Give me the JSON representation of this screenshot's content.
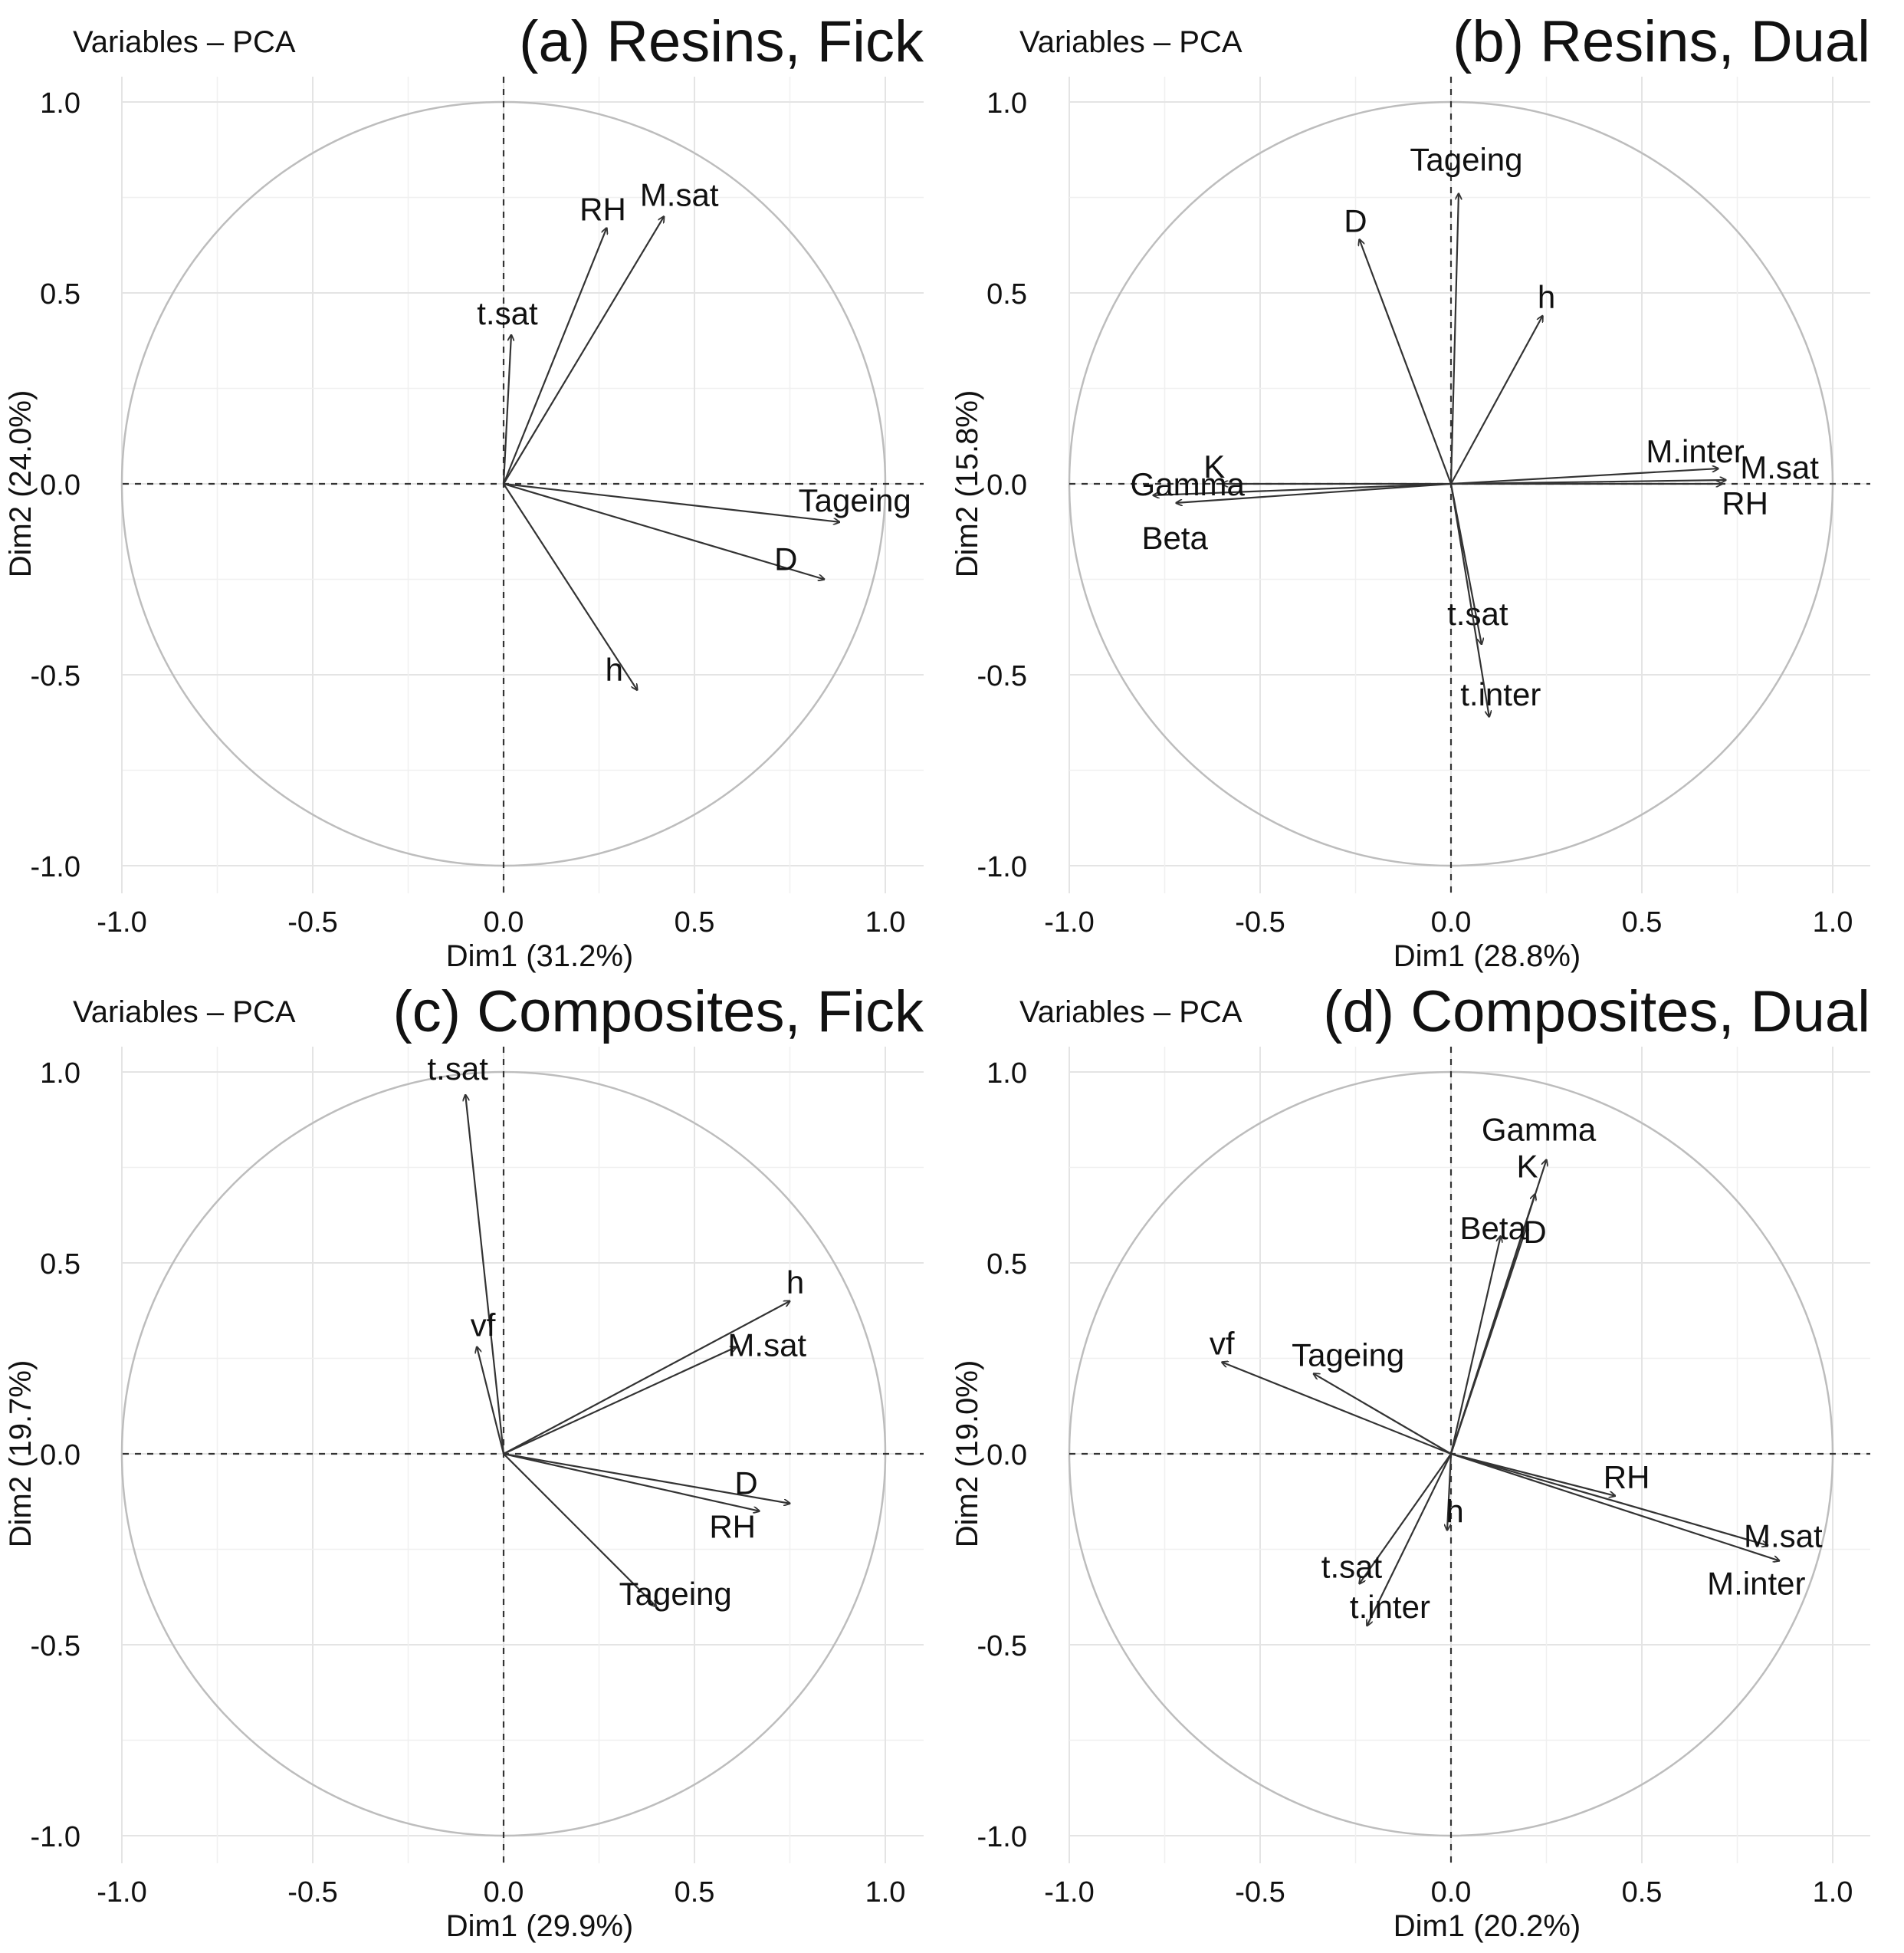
{
  "chart_data": [
    {
      "type": "scatter",
      "subtype": "pca-variable-correlation-circle",
      "corner_title": "Variables – PCA",
      "title": "(a) Resins, Fick",
      "xlabel": "Dim1 (31.2%)",
      "ylabel": "Dim2 (24.0%)",
      "xlim": [
        -1.0,
        1.0
      ],
      "ylim": [
        -1.0,
        1.0
      ],
      "ticks": [
        -1.0,
        -0.5,
        0.0,
        0.5,
        1.0
      ],
      "tick_labels": [
        "-1.0",
        "-0.5",
        "0.0",
        "0.5",
        "1.0"
      ],
      "grid": true,
      "variables": [
        {
          "name": "RH",
          "x": 0.27,
          "y": 0.67
        },
        {
          "name": "M.sat",
          "x": 0.42,
          "y": 0.7
        },
        {
          "name": "t.sat",
          "x": 0.02,
          "y": 0.39
        },
        {
          "name": "Tageing",
          "x": 0.88,
          "y": -0.1
        },
        {
          "name": "D",
          "x": 0.84,
          "y": -0.25
        },
        {
          "name": "h",
          "x": 0.35,
          "y": -0.54
        }
      ]
    },
    {
      "type": "scatter",
      "subtype": "pca-variable-correlation-circle",
      "corner_title": "Variables – PCA",
      "title": "(b) Resins, Dual",
      "xlabel": "Dim1 (28.8%)",
      "ylabel": "Dim2 (15.8%)",
      "xlim": [
        -1.0,
        1.0
      ],
      "ylim": [
        -1.0,
        1.0
      ],
      "ticks": [
        -1.0,
        -0.5,
        0.0,
        0.5,
        1.0
      ],
      "tick_labels": [
        "-1.0",
        "-0.5",
        "0.0",
        "0.5",
        "1.0"
      ],
      "grid": true,
      "variables": [
        {
          "name": "Tageing",
          "x": 0.02,
          "y": 0.76
        },
        {
          "name": "D",
          "x": -0.24,
          "y": 0.64
        },
        {
          "name": "h",
          "x": 0.24,
          "y": 0.44
        },
        {
          "name": "M.inter",
          "x": 0.7,
          "y": 0.04
        },
        {
          "name": "M.sat",
          "x": 0.72,
          "y": 0.01
        },
        {
          "name": "RH",
          "x": 0.71,
          "y": 0.0
        },
        {
          "name": "K",
          "x": -0.6,
          "y": 0.0
        },
        {
          "name": "Gamma",
          "x": -0.78,
          "y": -0.03
        },
        {
          "name": "Beta",
          "x": -0.72,
          "y": -0.05
        },
        {
          "name": "t.sat",
          "x": 0.08,
          "y": -0.42
        },
        {
          "name": "t.inter",
          "x": 0.1,
          "y": -0.61
        }
      ]
    },
    {
      "type": "scatter",
      "subtype": "pca-variable-correlation-circle",
      "corner_title": "Variables – PCA",
      "title": "(c) Composites, Fick",
      "xlabel": "Dim1 (29.9%)",
      "ylabel": "Dim2 (19.7%)",
      "xlim": [
        -1.0,
        1.0
      ],
      "ylim": [
        -1.0,
        1.0
      ],
      "ticks": [
        -1.0,
        -0.5,
        0.0,
        0.5,
        1.0
      ],
      "tick_labels": [
        "-1.0",
        "-0.5",
        "0.0",
        "0.5",
        "1.0"
      ],
      "grid": true,
      "variables": [
        {
          "name": "t.sat",
          "x": -0.1,
          "y": 0.94
        },
        {
          "name": "vf",
          "x": -0.07,
          "y": 0.28
        },
        {
          "name": "h",
          "x": 0.75,
          "y": 0.4
        },
        {
          "name": "M.sat",
          "x": 0.61,
          "y": 0.28
        },
        {
          "name": "D",
          "x": 0.75,
          "y": -0.13
        },
        {
          "name": "RH",
          "x": 0.67,
          "y": -0.15
        },
        {
          "name": "Tageing",
          "x": 0.4,
          "y": -0.4
        }
      ]
    },
    {
      "type": "scatter",
      "subtype": "pca-variable-correlation-circle",
      "corner_title": "Variables – PCA",
      "title": "(d) Composites, Dual",
      "xlabel": "Dim1 (20.2%)",
      "ylabel": "Dim2 (19.0%)",
      "xlim": [
        -1.0,
        1.0
      ],
      "ylim": [
        -1.0,
        1.0
      ],
      "ticks": [
        -1.0,
        -0.5,
        0.0,
        0.5,
        1.0
      ],
      "tick_labels": [
        "-1.0",
        "-0.5",
        "0.0",
        "0.5",
        "1.0"
      ],
      "grid": true,
      "variables": [
        {
          "name": "Gamma",
          "x": 0.25,
          "y": 0.77
        },
        {
          "name": "K",
          "x": 0.22,
          "y": 0.68
        },
        {
          "name": "D",
          "x": 0.2,
          "y": 0.6
        },
        {
          "name": "Beta",
          "x": 0.13,
          "y": 0.57
        },
        {
          "name": "vf",
          "x": -0.6,
          "y": 0.24
        },
        {
          "name": "Tageing",
          "x": -0.36,
          "y": 0.21
        },
        {
          "name": "RH",
          "x": 0.43,
          "y": -0.11
        },
        {
          "name": "M.sat",
          "x": 0.83,
          "y": -0.24
        },
        {
          "name": "M.inter",
          "x": 0.86,
          "y": -0.28
        },
        {
          "name": "h",
          "x": -0.01,
          "y": -0.2
        },
        {
          "name": "t.sat",
          "x": -0.24,
          "y": -0.34
        },
        {
          "name": "t.inter",
          "x": -0.22,
          "y": -0.45
        }
      ]
    }
  ]
}
